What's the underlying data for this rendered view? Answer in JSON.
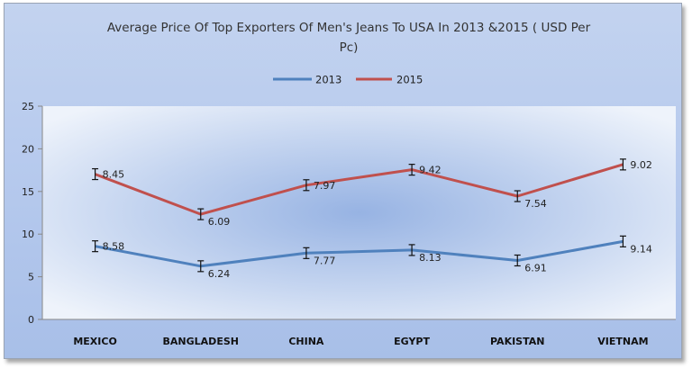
{
  "chart_data": {
    "type": "line",
    "title": "Average Price Of Top Exporters Of Men's Jeans To USA In 2013 &2015 ( USD Per Pc)",
    "title_lines": [
      "Average Price Of Top Exporters Of Men's Jeans To USA In 2013 &2015 ( USD Per",
      "Pc)"
    ],
    "categories": [
      "MEXICO",
      "BANGLADESH",
      "CHINA",
      "EGYPT",
      "PAKISTAN",
      "VIETNAM"
    ],
    "series": [
      {
        "name": "2013",
        "color": "#4f81bd",
        "values": [
          8.58,
          6.24,
          7.77,
          8.13,
          6.91,
          9.14
        ],
        "labels": [
          "8.58",
          "6.24",
          "7.77",
          "8.13",
          "6.91",
          "9.14"
        ]
      },
      {
        "name": "2015",
        "color": "#c0504d",
        "values": [
          17.03,
          12.33,
          15.74,
          17.55,
          14.45,
          18.16
        ],
        "labels": [
          "8.45",
          "6.09",
          "7.97",
          "9.42",
          "7.54",
          "9.02"
        ]
      }
    ],
    "ylim": [
      0,
      25
    ],
    "yticks": [
      "0",
      "5",
      "10",
      "15",
      "20",
      "25"
    ],
    "error_bars": true,
    "legend_position": "top-center",
    "grid": false,
    "xlabel": "",
    "ylabel": ""
  }
}
